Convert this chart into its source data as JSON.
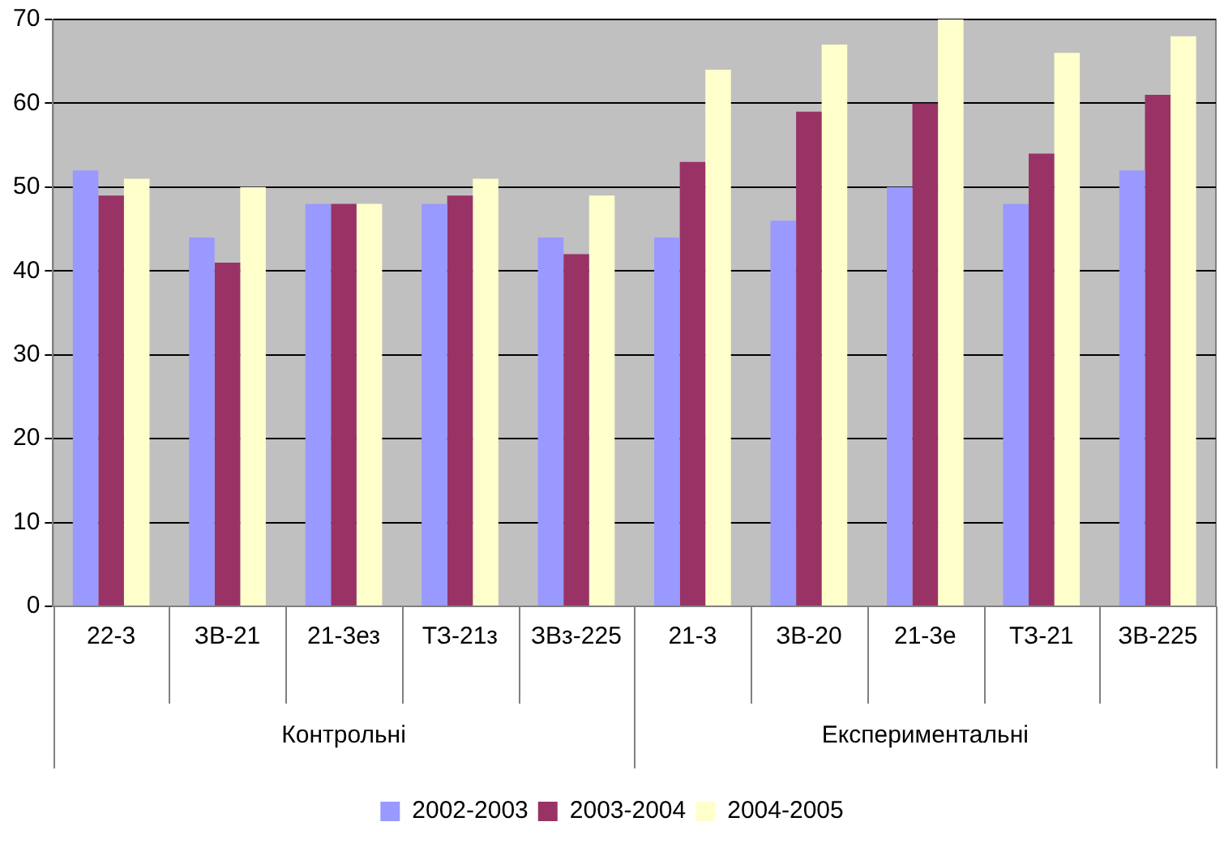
{
  "chart_data": {
    "type": "bar",
    "categories": [
      "22-3",
      "ЗВ-21",
      "21-3ез",
      "ТЗ-21з",
      "ЗВз-225",
      "21-3",
      "ЗВ-20",
      "21-3е",
      "ТЗ-21",
      "ЗВ-225"
    ],
    "series": [
      {
        "name": "2002-2003",
        "color": "#9999ff",
        "values": [
          52,
          44,
          48,
          48,
          44,
          44,
          46,
          50,
          48,
          52
        ]
      },
      {
        "name": "2003-2004",
        "color": "#993366",
        "values": [
          49,
          41,
          48,
          49,
          42,
          53,
          59,
          60,
          54,
          61
        ]
      },
      {
        "name": "2004-2005",
        "color": "#ffffcc",
        "values": [
          51,
          50,
          48,
          51,
          49,
          64,
          67,
          70,
          66,
          68
        ]
      }
    ],
    "ylim": [
      0,
      70
    ],
    "yticks": [
      0,
      10,
      20,
      30,
      40,
      50,
      60,
      70
    ],
    "grid": "y",
    "legend": "bottom",
    "annotations": [
      "Контрольні",
      "Експериментальні"
    ]
  }
}
